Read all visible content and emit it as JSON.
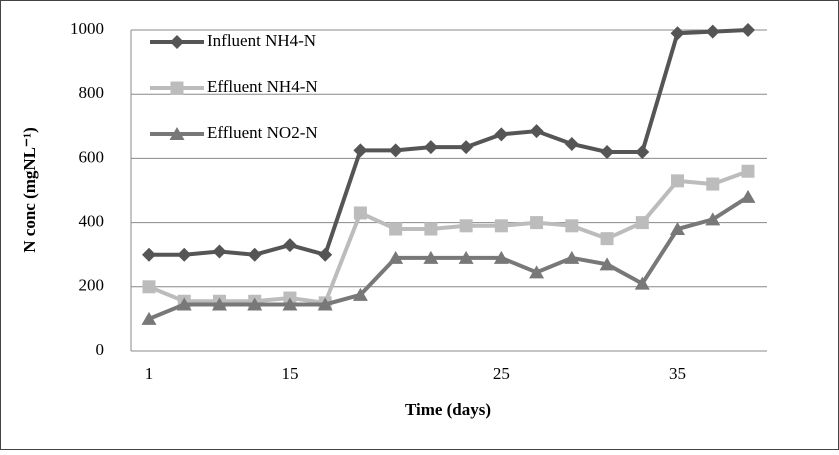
{
  "chart_data": {
    "type": "line",
    "x_label": "Time (days)",
    "y_label": "N conc (mgNL⁻¹)",
    "categories": [
      "1",
      null,
      null,
      null,
      "15",
      null,
      null,
      null,
      null,
      null,
      "25",
      null,
      null,
      null,
      null,
      "35",
      null,
      null
    ],
    "series": [
      {
        "name": "Influent  NH4-N",
        "color": "#555555",
        "marker": "diamond",
        "values": [
          300,
          300,
          310,
          300,
          330,
          300,
          625,
          625,
          635,
          635,
          675,
          685,
          645,
          620,
          620,
          990,
          995,
          1000
        ]
      },
      {
        "name": "Effluent NH4-N",
        "color": "#bcbcbc",
        "marker": "square",
        "values": [
          200,
          155,
          155,
          155,
          165,
          150,
          430,
          380,
          380,
          390,
          390,
          400,
          390,
          350,
          400,
          530,
          520,
          560
        ]
      },
      {
        "name": "Effluent NO2-N",
        "color": "#787878",
        "marker": "triangle",
        "values": [
          100,
          145,
          145,
          145,
          145,
          145,
          175,
          290,
          290,
          290,
          290,
          245,
          290,
          270,
          210,
          380,
          410,
          480
        ]
      }
    ],
    "ylim": [
      0,
      1000
    ],
    "yticks": [
      0,
      200,
      400,
      600,
      800,
      1000
    ],
    "grid": true
  }
}
